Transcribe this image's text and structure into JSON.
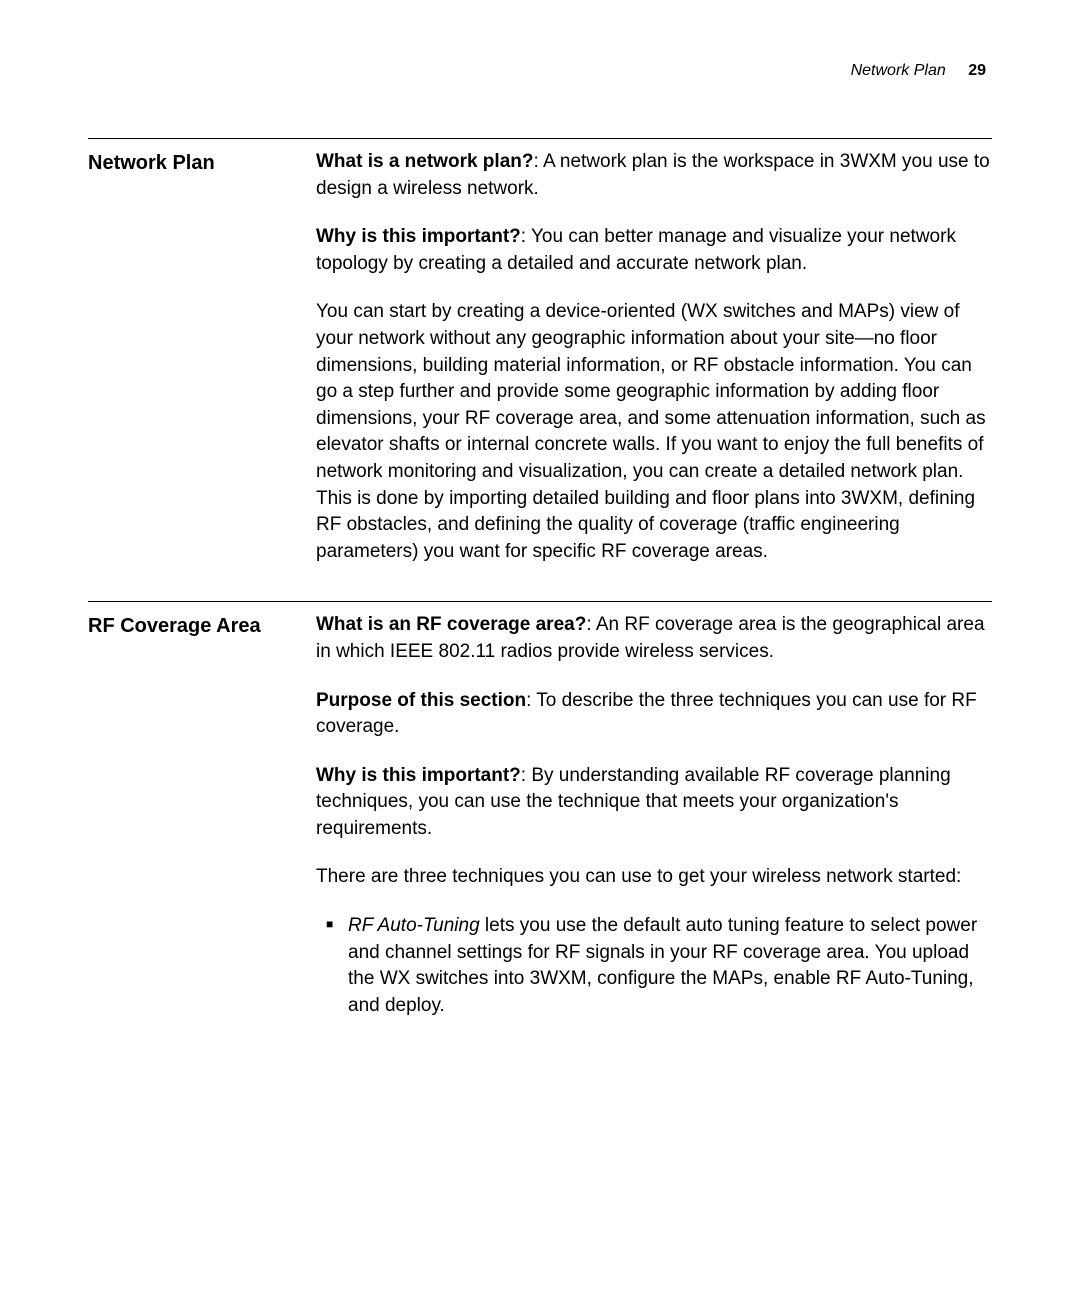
{
  "header": {
    "title": "Network Plan",
    "page": "29"
  },
  "sections": [
    {
      "heading": "Network Plan",
      "paragraphs": [
        {
          "lead": "What is a network plan?",
          "text": ": A network plan is the workspace in 3WXM you use to design a wireless network."
        },
        {
          "lead": "Why is this important?",
          "text": ": You can better manage and visualize your network topology by creating a detailed and accurate network plan."
        },
        {
          "lead": "",
          "text": "You can start by creating a device-oriented (WX switches and MAPs) view of your network without any geographic information about your site—no floor dimensions, building material information, or RF obstacle information. You can go a step further and provide some geographic information by adding floor dimensions, your RF coverage area, and some attenuation information, such as elevator shafts or internal concrete walls. If you want to enjoy the full benefits of network monitoring and visualization, you can create a detailed network plan. This is done by importing detailed building and floor plans into 3WXM, defining RF obstacles, and defining the quality of coverage (traffic engineering parameters) you want for specific RF coverage areas."
        }
      ]
    },
    {
      "heading": "RF Coverage Area",
      "paragraphs": [
        {
          "lead": "What is an RF coverage area?",
          "text": ": An RF coverage area is the geographical area in which IEEE 802.11 radios provide wireless services."
        },
        {
          "lead": "Purpose of this section",
          "text": ": To describe the three techniques you can use for RF coverage."
        },
        {
          "lead": "Why is this important?",
          "text": ": By understanding available RF coverage planning techniques, you can use the technique that meets your organization's requirements."
        },
        {
          "lead": "",
          "text": "There are three techniques you can use to get your wireless network started:"
        }
      ],
      "bullet": {
        "italic_lead": "RF Auto-Tuning",
        "rest": " lets you use the default auto tuning feature to select power and channel settings for RF signals in your RF coverage area. You upload the WX switches into 3WXM, configure the MAPs, enable RF Auto-Tuning, and deploy."
      }
    }
  ]
}
